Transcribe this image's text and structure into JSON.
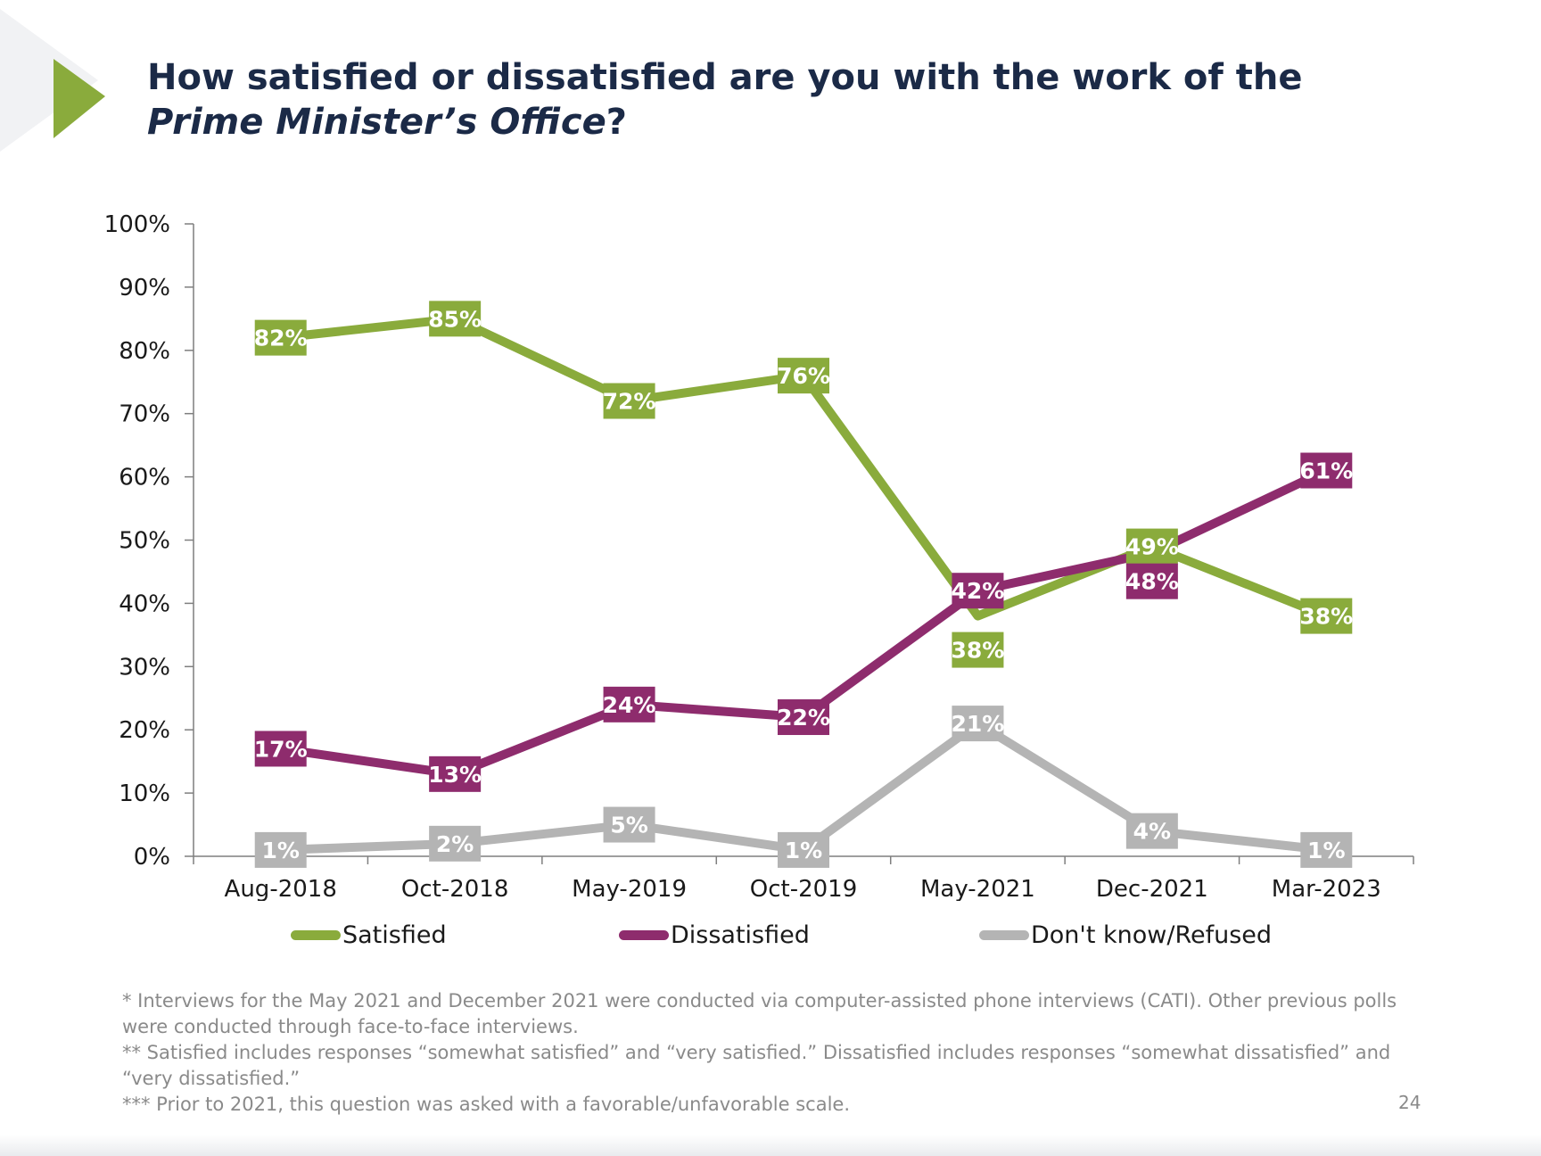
{
  "title": {
    "part1": "How satisfied or dissatisfied are you with the work of the ",
    "italic": "Prime Minister’s Office",
    "part2": "?"
  },
  "colors": {
    "satisfied": "#8aab3c",
    "dissatisfied": "#8e2c6d",
    "dont_know": "#b4b4b4",
    "title": "#1b2a47",
    "accent_arrow": "#8aab3c"
  },
  "chart_data": {
    "type": "line",
    "categories": [
      "Aug-2018",
      "Oct-2018",
      "May-2019",
      "Oct-2019",
      "May-2021",
      "Dec-2021",
      "Mar-2023"
    ],
    "series": [
      {
        "name": "Satisfied",
        "values": [
          82,
          85,
          72,
          76,
          38,
          49,
          38
        ],
        "labels": [
          "82%",
          "85%",
          "72%",
          "76%",
          "38%",
          "49%",
          "38%"
        ]
      },
      {
        "name": "Dissatisfied",
        "values": [
          17,
          13,
          24,
          22,
          42,
          48,
          61
        ],
        "labels": [
          "17%",
          "13%",
          "24%",
          "22%",
          "42%",
          "48%",
          "61%"
        ]
      },
      {
        "name": "Don't know/Refused",
        "values": [
          1,
          2,
          5,
          1,
          21,
          4,
          1
        ],
        "labels": [
          "1%",
          "2%",
          "5%",
          "1%",
          "21%",
          "4%",
          "1%"
        ]
      }
    ],
    "ylim": [
      0,
      100
    ],
    "yticks": [
      "0%",
      "10%",
      "20%",
      "30%",
      "40%",
      "50%",
      "60%",
      "70%",
      "80%",
      "90%",
      "100%"
    ],
    "grid": false,
    "legend_position": "bottom"
  },
  "legend": [
    {
      "label": "Satisfied",
      "color_key": "satisfied"
    },
    {
      "label": "Dissatisfied",
      "color_key": "dissatisfied"
    },
    {
      "label": "Don't know/Refused",
      "color_key": "dont_know"
    }
  ],
  "notes": [
    "* Interviews for the May 2021 and  December 2021 were conducted via computer-assisted phone interviews (CATI). Other previous polls were conducted through face-to-face interviews.",
    "** Satisfied includes responses “somewhat satisfied” and “very satisfied.” Dissatisfied includes responses “somewhat dissatisfied” and “very dissatisfied.”",
    "*** Prior to 2021, this question was asked with a favorable/unfavorable scale."
  ],
  "page_number": "24"
}
